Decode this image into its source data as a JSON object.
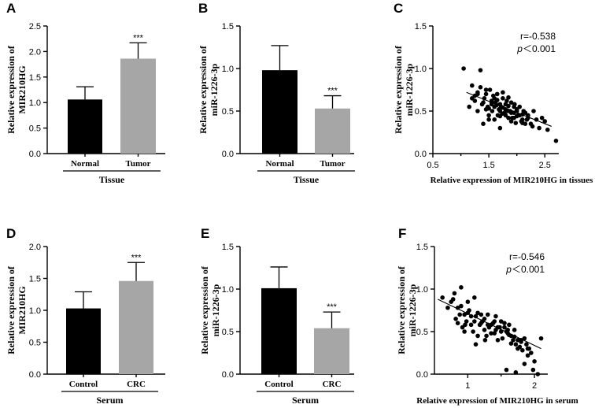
{
  "chart_data": [
    {
      "id": "A",
      "type": "bar",
      "panel_label": "A",
      "ylabel": [
        "Relative expression of",
        "MIR210HG"
      ],
      "ylim": [
        0,
        2.5
      ],
      "yticks": [
        "0.0",
        "0.5",
        "1.0",
        "1.5",
        "2.0",
        "2.5"
      ],
      "categories": [
        "Normal",
        "Tumor"
      ],
      "values": [
        1.06,
        1.86
      ],
      "errors": [
        0.25,
        0.31
      ],
      "colors": [
        "#000000",
        "#a6a6a6"
      ],
      "significance": [
        "",
        "***"
      ],
      "group_label": "Tissue"
    },
    {
      "id": "B",
      "type": "bar",
      "panel_label": "B",
      "ylabel": [
        "Relative expression of",
        "miR-1226-3p"
      ],
      "ylim": [
        0,
        1.5
      ],
      "yticks": [
        "0.0",
        "0.5",
        "1.0",
        "1.5"
      ],
      "categories": [
        "Normal",
        "Tumor"
      ],
      "values": [
        0.98,
        0.53
      ],
      "errors": [
        0.29,
        0.15
      ],
      "colors": [
        "#000000",
        "#a6a6a6"
      ],
      "significance": [
        "",
        "***"
      ],
      "group_label": "Tissue"
    },
    {
      "id": "C",
      "type": "scatter",
      "panel_label": "C",
      "ylabel": [
        "Relative expression of",
        "miR-1226-3p"
      ],
      "xlabel": "Relative expression of MIR210HG in tissues",
      "xlim": [
        0.5,
        2.75
      ],
      "xticks": [
        "0.5",
        "1.5",
        "2.5"
      ],
      "ylim": [
        0,
        1.5
      ],
      "yticks": [
        "0.0",
        "0.5",
        "1.0",
        "1.5"
      ],
      "r_text": "r=-0.538",
      "p_text": "p＜0.001",
      "fit": {
        "x": [
          1.1,
          2.62
        ],
        "y": [
          0.72,
          0.32
        ]
      },
      "x": [
        1.05,
        1.2,
        1.25,
        1.3,
        1.35,
        1.4,
        1.45,
        1.5,
        1.55,
        1.6,
        1.65,
        1.7,
        1.75,
        1.8,
        1.85,
        1.9,
        1.95,
        2.0,
        2.05,
        2.1,
        2.15,
        2.2,
        2.3,
        2.4,
        2.5,
        2.55,
        2.7,
        1.15,
        1.3,
        1.42,
        1.48,
        1.52,
        1.58,
        1.62,
        1.66,
        1.72,
        1.78,
        1.82,
        1.88,
        1.92,
        1.96,
        2.02,
        2.08,
        2.12,
        2.18,
        2.25,
        1.35,
        1.45,
        1.55,
        1.6,
        1.7,
        1.75,
        1.8,
        1.85,
        1.9,
        1.95,
        2.0,
        2.1,
        2.2,
        1.25,
        1.38,
        1.5,
        1.56,
        1.64,
        1.68,
        1.74,
        1.84,
        1.9,
        1.98,
        2.05,
        2.15,
        2.28,
        2.35,
        1.4,
        1.6,
        1.7,
        1.8,
        1.95,
        2.0,
        2.1,
        1.3,
        1.5,
        1.65,
        1.85,
        1.75,
        1.55,
        2.45,
        1.2,
        1.45,
        1.7
      ],
      "y": [
        1.0,
        0.8,
        0.68,
        0.72,
        0.98,
        0.6,
        0.75,
        0.45,
        0.62,
        0.55,
        0.7,
        0.5,
        0.65,
        0.58,
        0.42,
        0.6,
        0.48,
        0.52,
        0.55,
        0.4,
        0.35,
        0.45,
        0.5,
        0.3,
        0.38,
        0.28,
        0.15,
        0.55,
        0.5,
        0.65,
        0.55,
        0.75,
        0.68,
        0.6,
        0.45,
        0.55,
        0.48,
        0.62,
        0.5,
        0.42,
        0.58,
        0.45,
        0.38,
        0.5,
        0.4,
        0.35,
        0.78,
        0.7,
        0.6,
        0.65,
        0.58,
        0.72,
        0.52,
        0.56,
        0.48,
        0.55,
        0.44,
        0.46,
        0.42,
        0.62,
        0.58,
        0.53,
        0.5,
        0.57,
        0.52,
        0.47,
        0.5,
        0.38,
        0.36,
        0.45,
        0.48,
        0.32,
        0.4,
        0.35,
        0.4,
        0.3,
        0.45,
        0.42,
        0.5,
        0.36,
        0.7,
        0.4,
        0.63,
        0.66,
        0.54,
        0.58,
        0.42,
        0.65,
        0.52,
        0.44
      ]
    },
    {
      "id": "D",
      "type": "bar",
      "panel_label": "D",
      "ylabel": [
        "Relative expression of",
        "MIR210HG"
      ],
      "ylim": [
        0,
        2.0
      ],
      "yticks": [
        "0.0",
        "0.5",
        "1.0",
        "1.5",
        "2.0"
      ],
      "categories": [
        "Control",
        "CRC"
      ],
      "values": [
        1.03,
        1.46
      ],
      "errors": [
        0.26,
        0.29
      ],
      "colors": [
        "#000000",
        "#a6a6a6"
      ],
      "significance": [
        "",
        "***"
      ],
      "group_label": "Serum"
    },
    {
      "id": "E",
      "type": "bar",
      "panel_label": "E",
      "ylabel": [
        "Relative expression of",
        "miR-1226-3p"
      ],
      "ylim": [
        0,
        1.5
      ],
      "yticks": [
        "0.0",
        "0.5",
        "1.0",
        "1.5"
      ],
      "categories": [
        "Control",
        "CRC"
      ],
      "values": [
        1.01,
        0.54
      ],
      "errors": [
        0.25,
        0.19
      ],
      "colors": [
        "#000000",
        "#a6a6a6"
      ],
      "significance": [
        "",
        "***"
      ],
      "group_label": "Serum"
    },
    {
      "id": "F",
      "type": "scatter",
      "panel_label": "F",
      "ylabel": [
        "Relative expression of",
        "miR-1226-3p"
      ],
      "xlabel": "Relative expression of MIR210HG in serum",
      "xlim": [
        0.5,
        2.2
      ],
      "xticks": [
        "1",
        "2"
      ],
      "ylim": [
        0,
        1.5
      ],
      "yticks": [
        "0.0",
        "0.5",
        "1.0",
        "1.5"
      ],
      "r_text": "r=-0.546",
      "p_text": "p＜0.001",
      "fit": {
        "x": [
          0.55,
          2.1
        ],
        "y": [
          0.88,
          0.3
        ]
      },
      "x": [
        0.62,
        0.75,
        0.8,
        0.85,
        0.9,
        0.95,
        1.0,
        1.05,
        1.1,
        1.15,
        1.2,
        1.25,
        1.3,
        1.35,
        1.4,
        1.45,
        1.5,
        1.55,
        1.6,
        1.65,
        1.7,
        1.75,
        1.8,
        1.85,
        1.9,
        1.95,
        2.0,
        2.1,
        0.7,
        0.82,
        0.88,
        0.92,
        0.98,
        1.02,
        1.08,
        1.12,
        1.18,
        1.22,
        1.28,
        1.32,
        1.38,
        1.42,
        1.48,
        1.52,
        1.58,
        1.62,
        1.68,
        1.72,
        1.78,
        1.82,
        1.88,
        1.92,
        0.78,
        0.9,
        1.0,
        1.1,
        1.2,
        1.3,
        1.4,
        1.5,
        1.6,
        1.7,
        1.8,
        1.9,
        0.85,
        0.95,
        1.05,
        1.15,
        1.25,
        1.35,
        1.45,
        1.55,
        1.65,
        1.75,
        1.85,
        1.98,
        1.12,
        1.42,
        1.62,
        1.58,
        1.72,
        2.05,
        0.96,
        1.26
      ],
      "y": [
        0.9,
        0.85,
        0.95,
        0.78,
        1.02,
        0.7,
        0.85,
        0.68,
        0.9,
        0.72,
        0.6,
        0.65,
        0.7,
        0.58,
        0.62,
        0.55,
        0.5,
        0.6,
        0.48,
        0.45,
        0.52,
        0.4,
        0.38,
        0.42,
        0.3,
        0.25,
        0.15,
        0.42,
        0.78,
        0.65,
        0.7,
        0.55,
        0.62,
        0.75,
        0.5,
        0.68,
        0.58,
        0.62,
        0.45,
        0.55,
        0.6,
        0.52,
        0.55,
        0.42,
        0.5,
        0.46,
        0.4,
        0.35,
        0.32,
        0.28,
        0.35,
        0.3,
        0.88,
        0.8,
        0.72,
        0.62,
        0.7,
        0.58,
        0.48,
        0.62,
        0.52,
        0.44,
        0.4,
        0.22,
        0.6,
        0.5,
        0.58,
        0.45,
        0.52,
        0.48,
        0.4,
        0.55,
        0.36,
        0.3,
        0.12,
        0.05,
        0.35,
        0.68,
        0.58,
        0.05,
        0.02,
        0.0,
        0.58,
        0.4
      ]
    }
  ]
}
